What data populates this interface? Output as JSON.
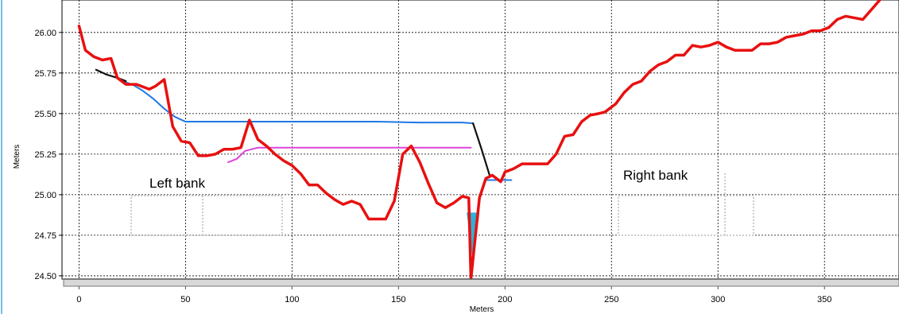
{
  "chart_data": {
    "type": "line",
    "xlabel": "Meters",
    "ylabel": "Meters",
    "xlim": [
      -8,
      385
    ],
    "ylim": [
      24.48,
      26.2
    ],
    "x_ticks": [
      0,
      50,
      100,
      150,
      200,
      250,
      300,
      350
    ],
    "y_ticks": [
      24.5,
      24.75,
      25.0,
      25.25,
      25.5,
      25.75,
      26.0
    ],
    "x_tick_labels": [
      "0",
      "50",
      "100",
      "150",
      "200",
      "250",
      "300",
      "350"
    ],
    "y_tick_labels": [
      "24.50",
      "24.75",
      "25.00",
      "25.25",
      "25.50",
      "25.75",
      "26.00"
    ],
    "grid": true,
    "annotations": [
      "Left bank",
      "Right bank"
    ],
    "series": [
      {
        "key": "profile",
        "color": "#e81010",
        "points": [
          [
            0,
            26.04
          ],
          [
            3,
            25.89
          ],
          [
            7,
            25.85
          ],
          [
            11,
            25.83
          ],
          [
            15,
            25.84
          ],
          [
            18,
            25.72
          ],
          [
            22,
            25.68
          ],
          [
            27,
            25.68
          ],
          [
            33,
            25.65
          ],
          [
            36,
            25.67
          ],
          [
            40,
            25.71
          ],
          [
            44,
            25.42
          ],
          [
            48,
            25.33
          ],
          [
            52,
            25.32
          ],
          [
            56,
            25.24
          ],
          [
            60,
            25.24
          ],
          [
            64,
            25.25
          ],
          [
            68,
            25.28
          ],
          [
            72,
            25.28
          ],
          [
            76,
            25.29
          ],
          [
            80,
            25.46
          ],
          [
            84,
            25.34
          ],
          [
            88,
            25.3
          ],
          [
            92,
            25.25
          ],
          [
            96,
            25.21
          ],
          [
            100,
            25.18
          ],
          [
            104,
            25.13
          ],
          [
            108,
            25.06
          ],
          [
            112,
            25.06
          ],
          [
            116,
            25.01
          ],
          [
            120,
            24.97
          ],
          [
            124,
            24.94
          ],
          [
            128,
            24.96
          ],
          [
            132,
            24.94
          ],
          [
            136,
            24.85
          ],
          [
            140,
            24.85
          ],
          [
            144,
            24.85
          ],
          [
            148,
            24.96
          ],
          [
            152,
            25.25
          ],
          [
            156,
            25.3
          ],
          [
            160,
            25.2
          ],
          [
            164,
            25.07
          ],
          [
            168,
            24.95
          ],
          [
            172,
            24.92
          ],
          [
            176,
            24.95
          ],
          [
            180,
            24.99
          ],
          [
            183,
            24.98
          ],
          [
            184,
            24.48
          ],
          [
            188,
            24.98
          ],
          [
            191,
            25.1
          ],
          [
            194,
            25.12
          ],
          [
            198,
            25.08
          ],
          [
            200,
            25.14
          ],
          [
            204,
            25.16
          ],
          [
            208,
            25.19
          ],
          [
            214,
            25.19
          ],
          [
            220,
            25.19
          ],
          [
            224,
            25.25
          ],
          [
            228,
            25.36
          ],
          [
            232,
            25.37
          ],
          [
            236,
            25.45
          ],
          [
            240,
            25.49
          ],
          [
            244,
            25.5
          ],
          [
            247,
            25.51
          ],
          [
            252,
            25.56
          ],
          [
            256,
            25.63
          ],
          [
            260,
            25.68
          ],
          [
            264,
            25.7
          ],
          [
            268,
            25.76
          ],
          [
            272,
            25.8
          ],
          [
            276,
            25.82
          ],
          [
            280,
            25.86
          ],
          [
            284,
            25.86
          ],
          [
            288,
            25.92
          ],
          [
            292,
            25.91
          ],
          [
            296,
            25.92
          ],
          [
            300,
            25.94
          ],
          [
            304,
            25.91
          ],
          [
            308,
            25.89
          ],
          [
            312,
            25.89
          ],
          [
            316,
            25.89
          ],
          [
            320,
            25.93
          ],
          [
            324,
            25.93
          ],
          [
            328,
            25.94
          ],
          [
            332,
            25.97
          ],
          [
            336,
            25.98
          ],
          [
            340,
            25.99
          ],
          [
            344,
            26.01
          ],
          [
            348,
            26.01
          ],
          [
            352,
            26.03
          ],
          [
            356,
            26.08
          ],
          [
            360,
            26.1
          ],
          [
            364,
            26.09
          ],
          [
            368,
            26.08
          ],
          [
            372,
            26.14
          ],
          [
            376,
            26.2
          ]
        ]
      },
      {
        "key": "water-surface-blue",
        "color": "#1f78e6",
        "points": [
          [
            20,
            25.7
          ],
          [
            25,
            25.68
          ],
          [
            30,
            25.64
          ],
          [
            35,
            25.59
          ],
          [
            40,
            25.53
          ],
          [
            45,
            25.48
          ],
          [
            50,
            25.45
          ],
          [
            60,
            25.45
          ],
          [
            80,
            25.45
          ],
          [
            100,
            25.45
          ],
          [
            120,
            25.45
          ],
          [
            140,
            25.45
          ],
          [
            160,
            25.445
          ],
          [
            180,
            25.445
          ],
          [
            185,
            25.44
          ]
        ]
      },
      {
        "key": "water-surface-black",
        "color": "#111111",
        "points": [
          [
            8,
            25.77
          ],
          [
            13,
            25.74
          ],
          [
            18,
            25.72
          ],
          [
            22,
            25.7
          ]
        ]
      },
      {
        "key": "bank-segment-black",
        "color": "#111111",
        "points": [
          [
            185,
            25.44
          ],
          [
            189,
            25.28
          ],
          [
            193,
            25.11
          ]
        ]
      },
      {
        "key": "water-surface-blue-right",
        "color": "#1f78e6",
        "points": [
          [
            191,
            25.09
          ],
          [
            196,
            25.09
          ],
          [
            203,
            25.09
          ]
        ]
      },
      {
        "key": "water-surface-magenta",
        "color": "#dd44dd",
        "points": [
          [
            70,
            25.2
          ],
          [
            74,
            25.22
          ],
          [
            78,
            25.27
          ],
          [
            84,
            25.29
          ],
          [
            100,
            25.29
          ],
          [
            120,
            25.29
          ],
          [
            140,
            25.29
          ],
          [
            160,
            25.29
          ],
          [
            175,
            25.29
          ],
          [
            184,
            25.29
          ]
        ]
      }
    ],
    "fill_polygon": {
      "key": "channel-fill",
      "color": "#2bb3d6",
      "points": [
        [
          182,
          24.89
        ],
        [
          188,
          24.89
        ],
        [
          185,
          24.58
        ]
      ]
    }
  }
}
